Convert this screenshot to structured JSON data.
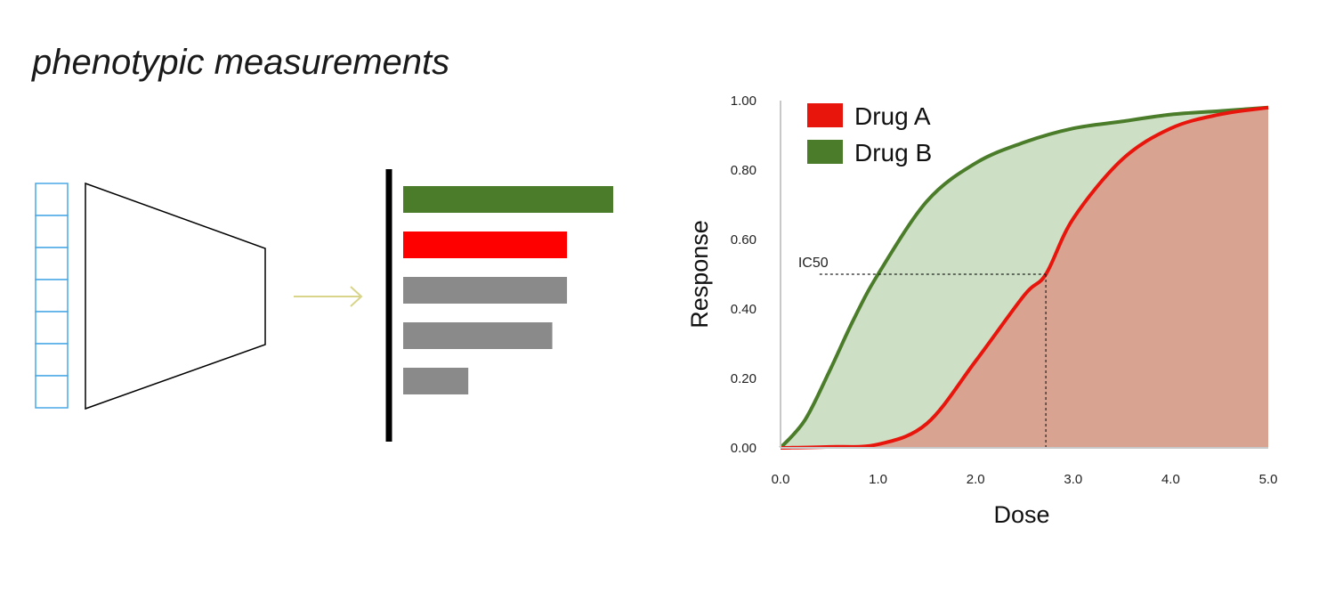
{
  "title": "phenotypic measurements",
  "diagram": {
    "input_cells": 7,
    "ranked_bars": [
      {
        "value": 1.0,
        "color": "#4a7c2a"
      },
      {
        "value": 0.78,
        "color": "#ff0000"
      },
      {
        "value": 0.78,
        "color": "#8a8a8a"
      },
      {
        "value": 0.71,
        "color": "#8a8a8a"
      },
      {
        "value": 0.31,
        "color": "#8a8a8a"
      }
    ],
    "colors": {
      "cells": "#4aa8e6",
      "arrow": "#d8d48a",
      "axis": "#000000"
    }
  },
  "chart_data": {
    "type": "area",
    "xlabel": "Dose",
    "ylabel": "Response",
    "xlim": [
      0,
      5
    ],
    "ylim": [
      0,
      1
    ],
    "xticks": [
      "0.0",
      "1.0",
      "2.0",
      "3.0",
      "4.0",
      "5.0"
    ],
    "yticks": [
      "0.00",
      "0.20",
      "0.40",
      "0.60",
      "0.80",
      "1.00"
    ],
    "legend_position": "top-left",
    "series": [
      {
        "name": "Drug A",
        "color": "#e8150c",
        "fill": "#d9a392",
        "x": [
          0,
          0.5,
          1.0,
          1.5,
          2.0,
          2.5,
          2.72,
          3.0,
          3.5,
          4.0,
          4.5,
          5.0
        ],
        "y": [
          0.0,
          0.003,
          0.01,
          0.07,
          0.25,
          0.44,
          0.5,
          0.66,
          0.83,
          0.92,
          0.96,
          0.98
        ]
      },
      {
        "name": "Drug B",
        "color": "#4a7c2a",
        "fill": "#cde0c6",
        "x": [
          0,
          0.25,
          0.5,
          0.75,
          1.0,
          1.5,
          2.0,
          2.5,
          3.0,
          3.5,
          4.0,
          4.5,
          5.0
        ],
        "y": [
          0.0,
          0.08,
          0.22,
          0.37,
          0.5,
          0.71,
          0.82,
          0.88,
          0.92,
          0.94,
          0.96,
          0.97,
          0.98
        ]
      }
    ],
    "annotations": [
      {
        "text": "IC50",
        "y": 0.5,
        "x_start": 0.4,
        "x_end": 2.72
      }
    ]
  }
}
